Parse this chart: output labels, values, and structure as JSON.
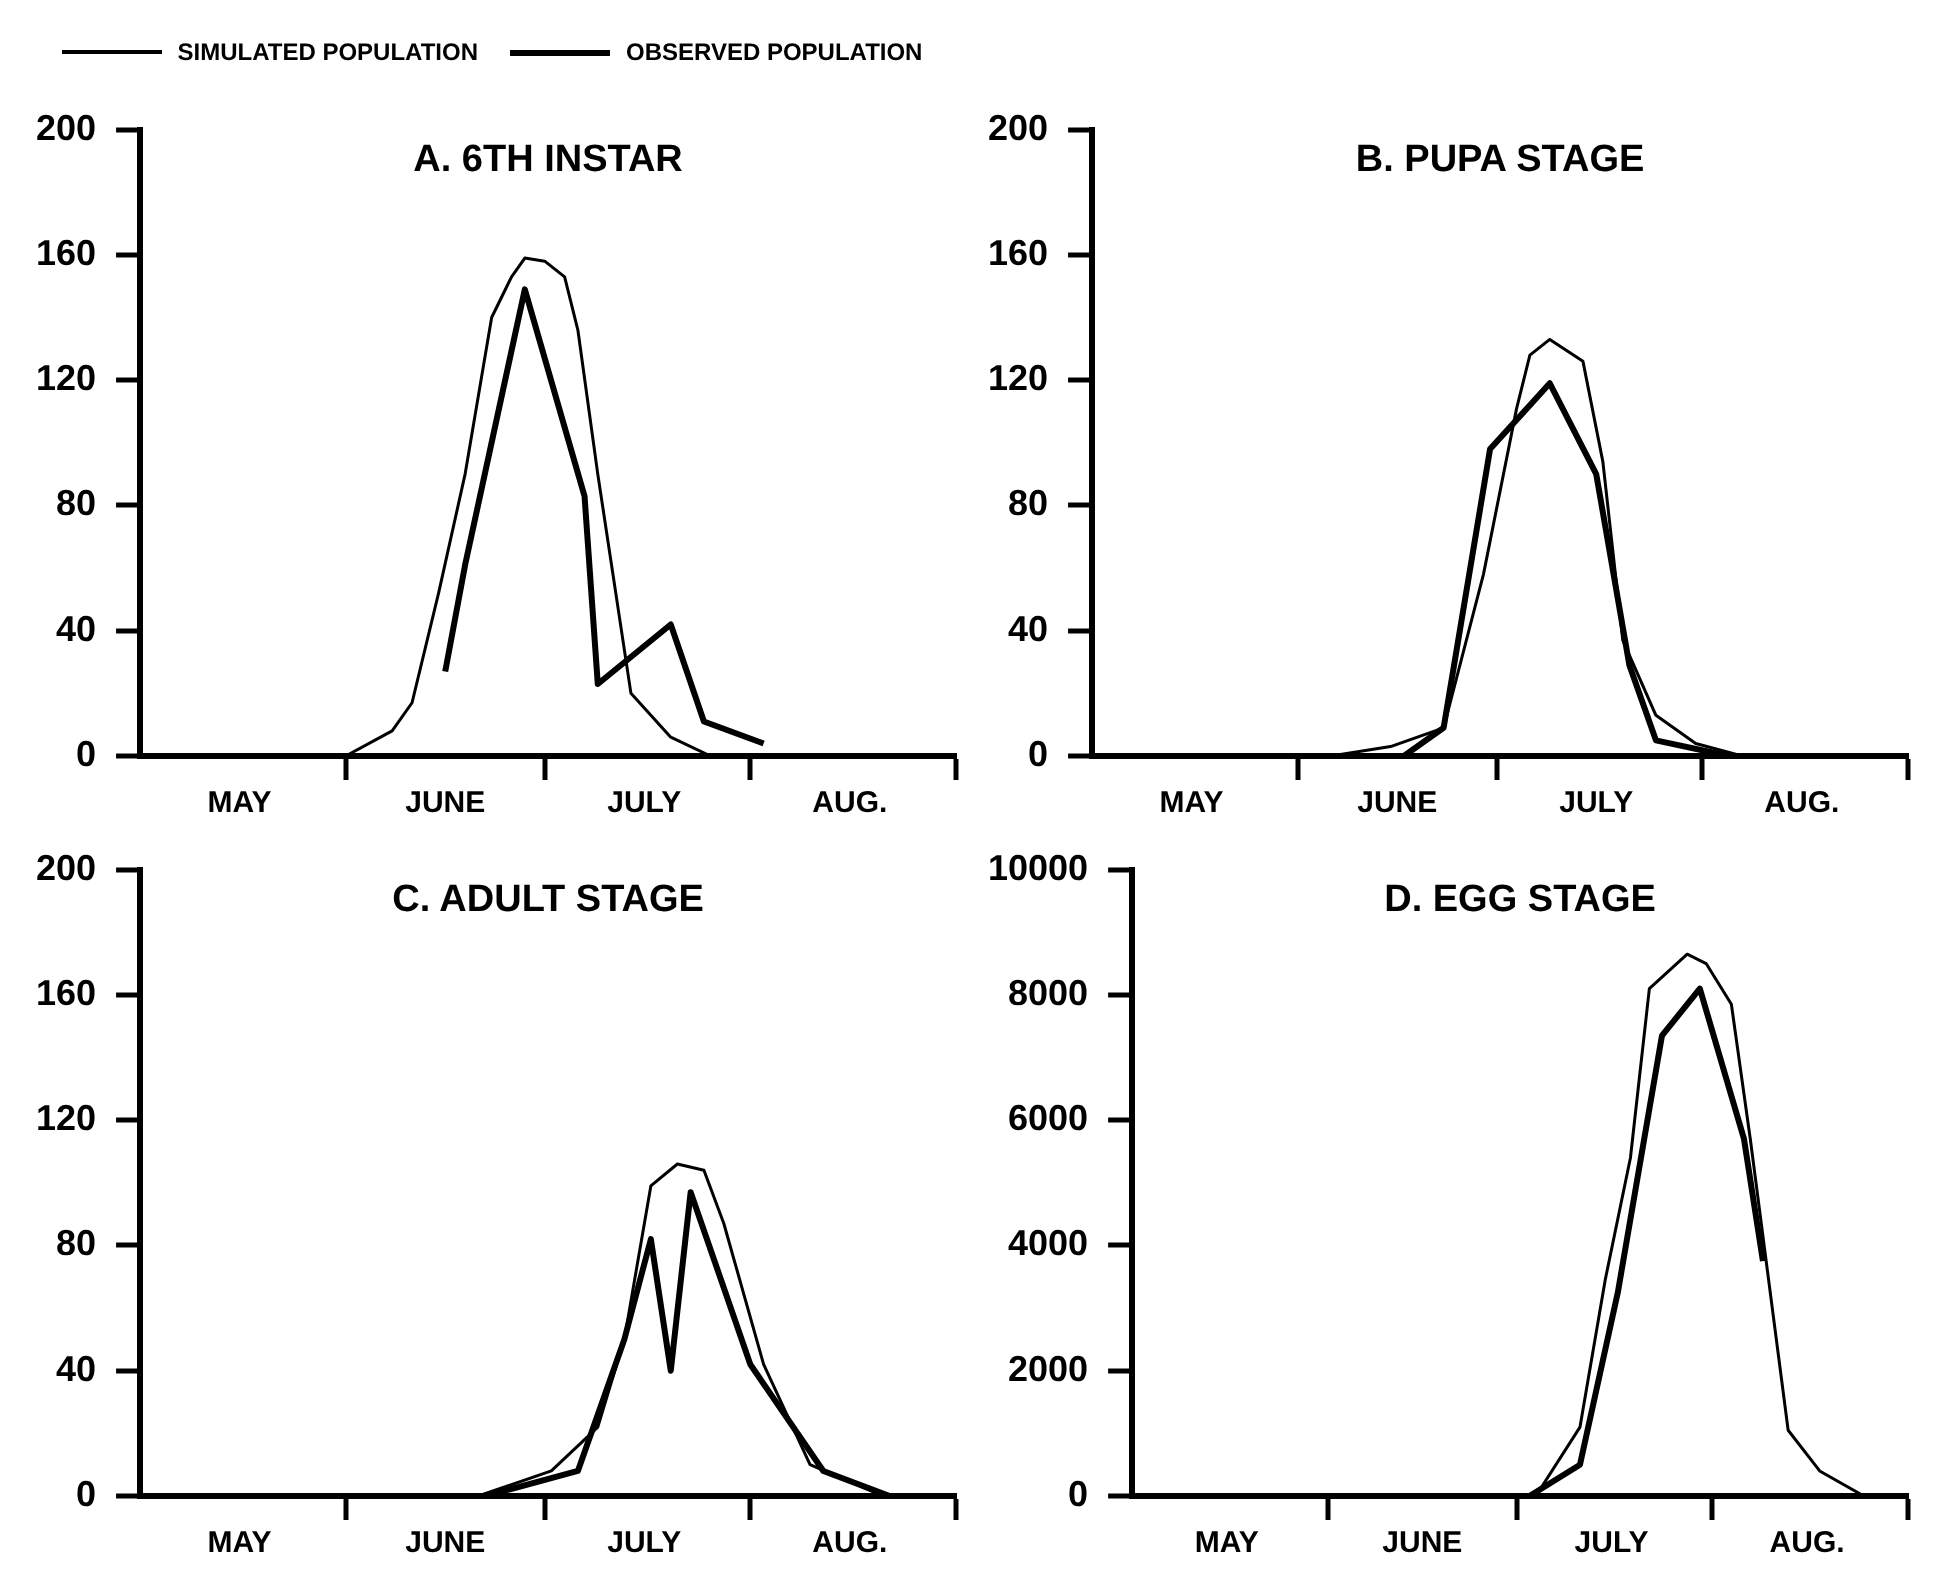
{
  "chart_data": [
    {
      "type": "line",
      "title": "A. 6TH INSTAR",
      "legend": "top",
      "xlim": [
        "--05-01",
        "--09-01"
      ],
      "xticks": [
        {
          "value": "--05-16",
          "label": "MAY"
        },
        {
          "value": "--06-01",
          "label": null
        },
        {
          "value": "--06-16",
          "label": "JUNE"
        },
        {
          "value": "--07-01",
          "label": null
        },
        {
          "value": "--07-16",
          "label": "JULY"
        },
        {
          "value": "--08-01",
          "label": null
        },
        {
          "value": "--08-16",
          "label": "AUG."
        },
        {
          "value": "--09-01",
          "label": null
        }
      ],
      "ylim": [
        0,
        200
      ],
      "yticks": [
        0,
        40,
        80,
        120,
        160,
        200
      ],
      "series": [
        {
          "name": "SIMULATED POPULATION",
          "color": "#000000",
          "x": [
            "--06-01",
            "--06-08",
            "--06-11",
            "--06-15",
            "--06-19",
            "--06-23",
            "--06-26",
            "--06-28",
            "--07-01",
            "--07-04",
            "--07-06",
            "--07-09",
            "--07-14",
            "--07-20",
            "--07-26"
          ],
          "values": [
            0,
            8,
            17,
            52,
            90,
            140,
            153,
            159,
            158,
            153,
            136,
            90,
            20,
            6,
            0
          ]
        },
        {
          "name": "OBSERVED POPULATION",
          "color": "#000000",
          "x": [
            "--06-16",
            "--06-19",
            "--06-28",
            "--07-07",
            "--07-09",
            "--07-20",
            "--07-25",
            "--08-03"
          ],
          "values": [
            27,
            61,
            149,
            83,
            23,
            42,
            11,
            4
          ]
        }
      ]
    },
    {
      "type": "line",
      "title": "B. PUPA STAGE",
      "xlim": [
        "--05-01",
        "--09-01"
      ],
      "xticks": [
        {
          "value": "--05-16",
          "label": "MAY"
        },
        {
          "value": "--06-01",
          "label": null
        },
        {
          "value": "--06-16",
          "label": "JUNE"
        },
        {
          "value": "--07-01",
          "label": null
        },
        {
          "value": "--07-16",
          "label": "JULY"
        },
        {
          "value": "--08-01",
          "label": null
        },
        {
          "value": "--08-16",
          "label": "AUG."
        },
        {
          "value": "--09-01",
          "label": null
        }
      ],
      "ylim": [
        0,
        200
      ],
      "yticks": [
        0,
        40,
        80,
        120,
        160,
        200
      ],
      "series": [
        {
          "color": "#000000",
          "x": [
            "--06-06",
            "--06-15",
            "--06-23",
            "--06-29",
            "--07-04",
            "--07-06",
            "--07-09",
            "--07-14",
            "--07-17",
            "--07-20",
            "--07-25",
            "--07-31",
            "--08-07"
          ],
          "values": [
            0,
            3,
            9,
            58,
            111,
            128,
            133,
            126,
            94,
            37,
            13,
            4,
            0
          ]
        },
        {
          "color": "#000000",
          "x": [
            "--06-17",
            "--06-23",
            "--06-30",
            "--07-09",
            "--07-16",
            "--07-21",
            "--07-25",
            "--08-05"
          ],
          "values": [
            0,
            9,
            98,
            119,
            90,
            29,
            5,
            0
          ]
        }
      ]
    },
    {
      "type": "line",
      "title": "C. ADULT STAGE",
      "xlim": [
        "--05-01",
        "--09-01"
      ],
      "xticks": [
        {
          "value": "--05-16",
          "label": "MAY"
        },
        {
          "value": "--06-01",
          "label": null
        },
        {
          "value": "--06-16",
          "label": "JUNE"
        },
        {
          "value": "--07-01",
          "label": null
        },
        {
          "value": "--07-16",
          "label": "JULY"
        },
        {
          "value": "--08-01",
          "label": null
        },
        {
          "value": "--08-16",
          "label": "AUG."
        },
        {
          "value": "--09-01",
          "label": null
        }
      ],
      "ylim": [
        0,
        200
      ],
      "yticks": [
        0,
        40,
        80,
        120,
        160,
        200
      ],
      "series": [
        {
          "color": "#000000",
          "x": [
            "--06-21",
            "--07-02",
            "--07-09",
            "--07-13",
            "--07-17",
            "--07-21",
            "--07-25",
            "--07-28",
            "--08-03",
            "--08-10",
            "--08-21"
          ],
          "values": [
            0,
            8,
            22,
            50,
            99,
            106,
            104,
            87,
            42,
            10,
            0
          ]
        },
        {
          "color": "#000000",
          "x": [
            "--06-22",
            "--07-06",
            "--07-13",
            "--07-17",
            "--07-20",
            "--07-23",
            "--08-01",
            "--08-12",
            "--08-22"
          ],
          "values": [
            0,
            8,
            50,
            82,
            40,
            97,
            42,
            8,
            0
          ]
        }
      ]
    },
    {
      "type": "line",
      "title": "D. EGG STAGE",
      "xlim": [
        "--05-01",
        "--09-01"
      ],
      "xticks": [
        {
          "value": "--05-16",
          "label": "MAY"
        },
        {
          "value": "--06-01",
          "label": null
        },
        {
          "value": "--06-16",
          "label": "JUNE"
        },
        {
          "value": "--07-01",
          "label": null
        },
        {
          "value": "--07-16",
          "label": "JULY"
        },
        {
          "value": "--08-01",
          "label": null
        },
        {
          "value": "--08-16",
          "label": "AUG."
        },
        {
          "value": "--09-01",
          "label": null
        }
      ],
      "ylim": [
        0,
        10000
      ],
      "yticks": [
        0,
        2000,
        4000,
        6000,
        8000,
        10000
      ],
      "series": [
        {
          "color": "#000000",
          "x": [
            "--07-04",
            "--07-11",
            "--07-15",
            "--07-19",
            "--07-22",
            "--07-28",
            "--07-31",
            "--08-04",
            "--08-07",
            "--08-13",
            "--08-18",
            "--08-25"
          ],
          "values": [
            0,
            1100,
            3450,
            5400,
            8100,
            8650,
            8500,
            7850,
            5700,
            1050,
            400,
            0
          ]
        },
        {
          "color": "#000000",
          "x": [
            "--07-03",
            "--07-11",
            "--07-17",
            "--07-24",
            "--07-30",
            "--08-06",
            "--08-09"
          ],
          "values": [
            0,
            500,
            3250,
            7350,
            8100,
            5700,
            3750
          ]
        }
      ]
    }
  ]
}
